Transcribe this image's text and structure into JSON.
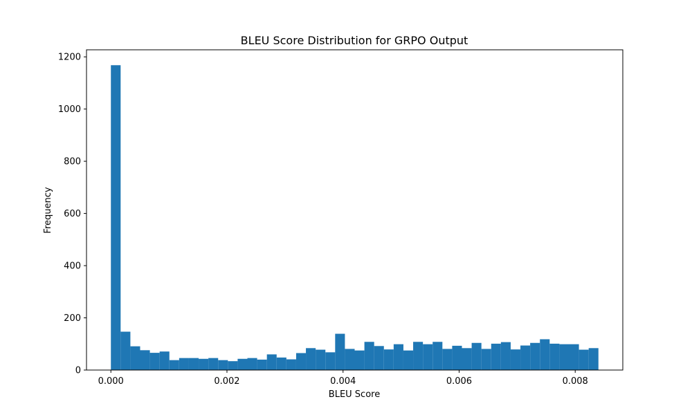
{
  "chart_data": {
    "type": "bar",
    "subtype": "histogram",
    "title": "BLEU Score Distribution for GRPO Output",
    "xlabel": "BLEU Score",
    "ylabel": "Frequency",
    "bar_color": "#1f77b4",
    "grid": false,
    "xlim": [
      -0.00042,
      0.00882
    ],
    "ylim": [
      0,
      1227
    ],
    "xticks": [
      0.0,
      0.002,
      0.004,
      0.006,
      0.008
    ],
    "xtick_labels": [
      "0.000",
      "0.002",
      "0.004",
      "0.006",
      "0.008"
    ],
    "yticks": [
      0,
      200,
      400,
      600,
      800,
      1000,
      1200
    ],
    "ytick_labels": [
      "0",
      "200",
      "400",
      "600",
      "800",
      "1000",
      "1200"
    ],
    "bin_range": [
      0.0,
      0.0084
    ],
    "values": [
      1168,
      147,
      91,
      76,
      66,
      71,
      38,
      46,
      46,
      43,
      46,
      38,
      34,
      43,
      46,
      40,
      60,
      48,
      41,
      65,
      84,
      78,
      68,
      139,
      81,
      75,
      108,
      92,
      79,
      99,
      75,
      108,
      99,
      108,
      81,
      93,
      84,
      104,
      81,
      101,
      107,
      79,
      94,
      104,
      118,
      101,
      99,
      99,
      78,
      84
    ]
  }
}
